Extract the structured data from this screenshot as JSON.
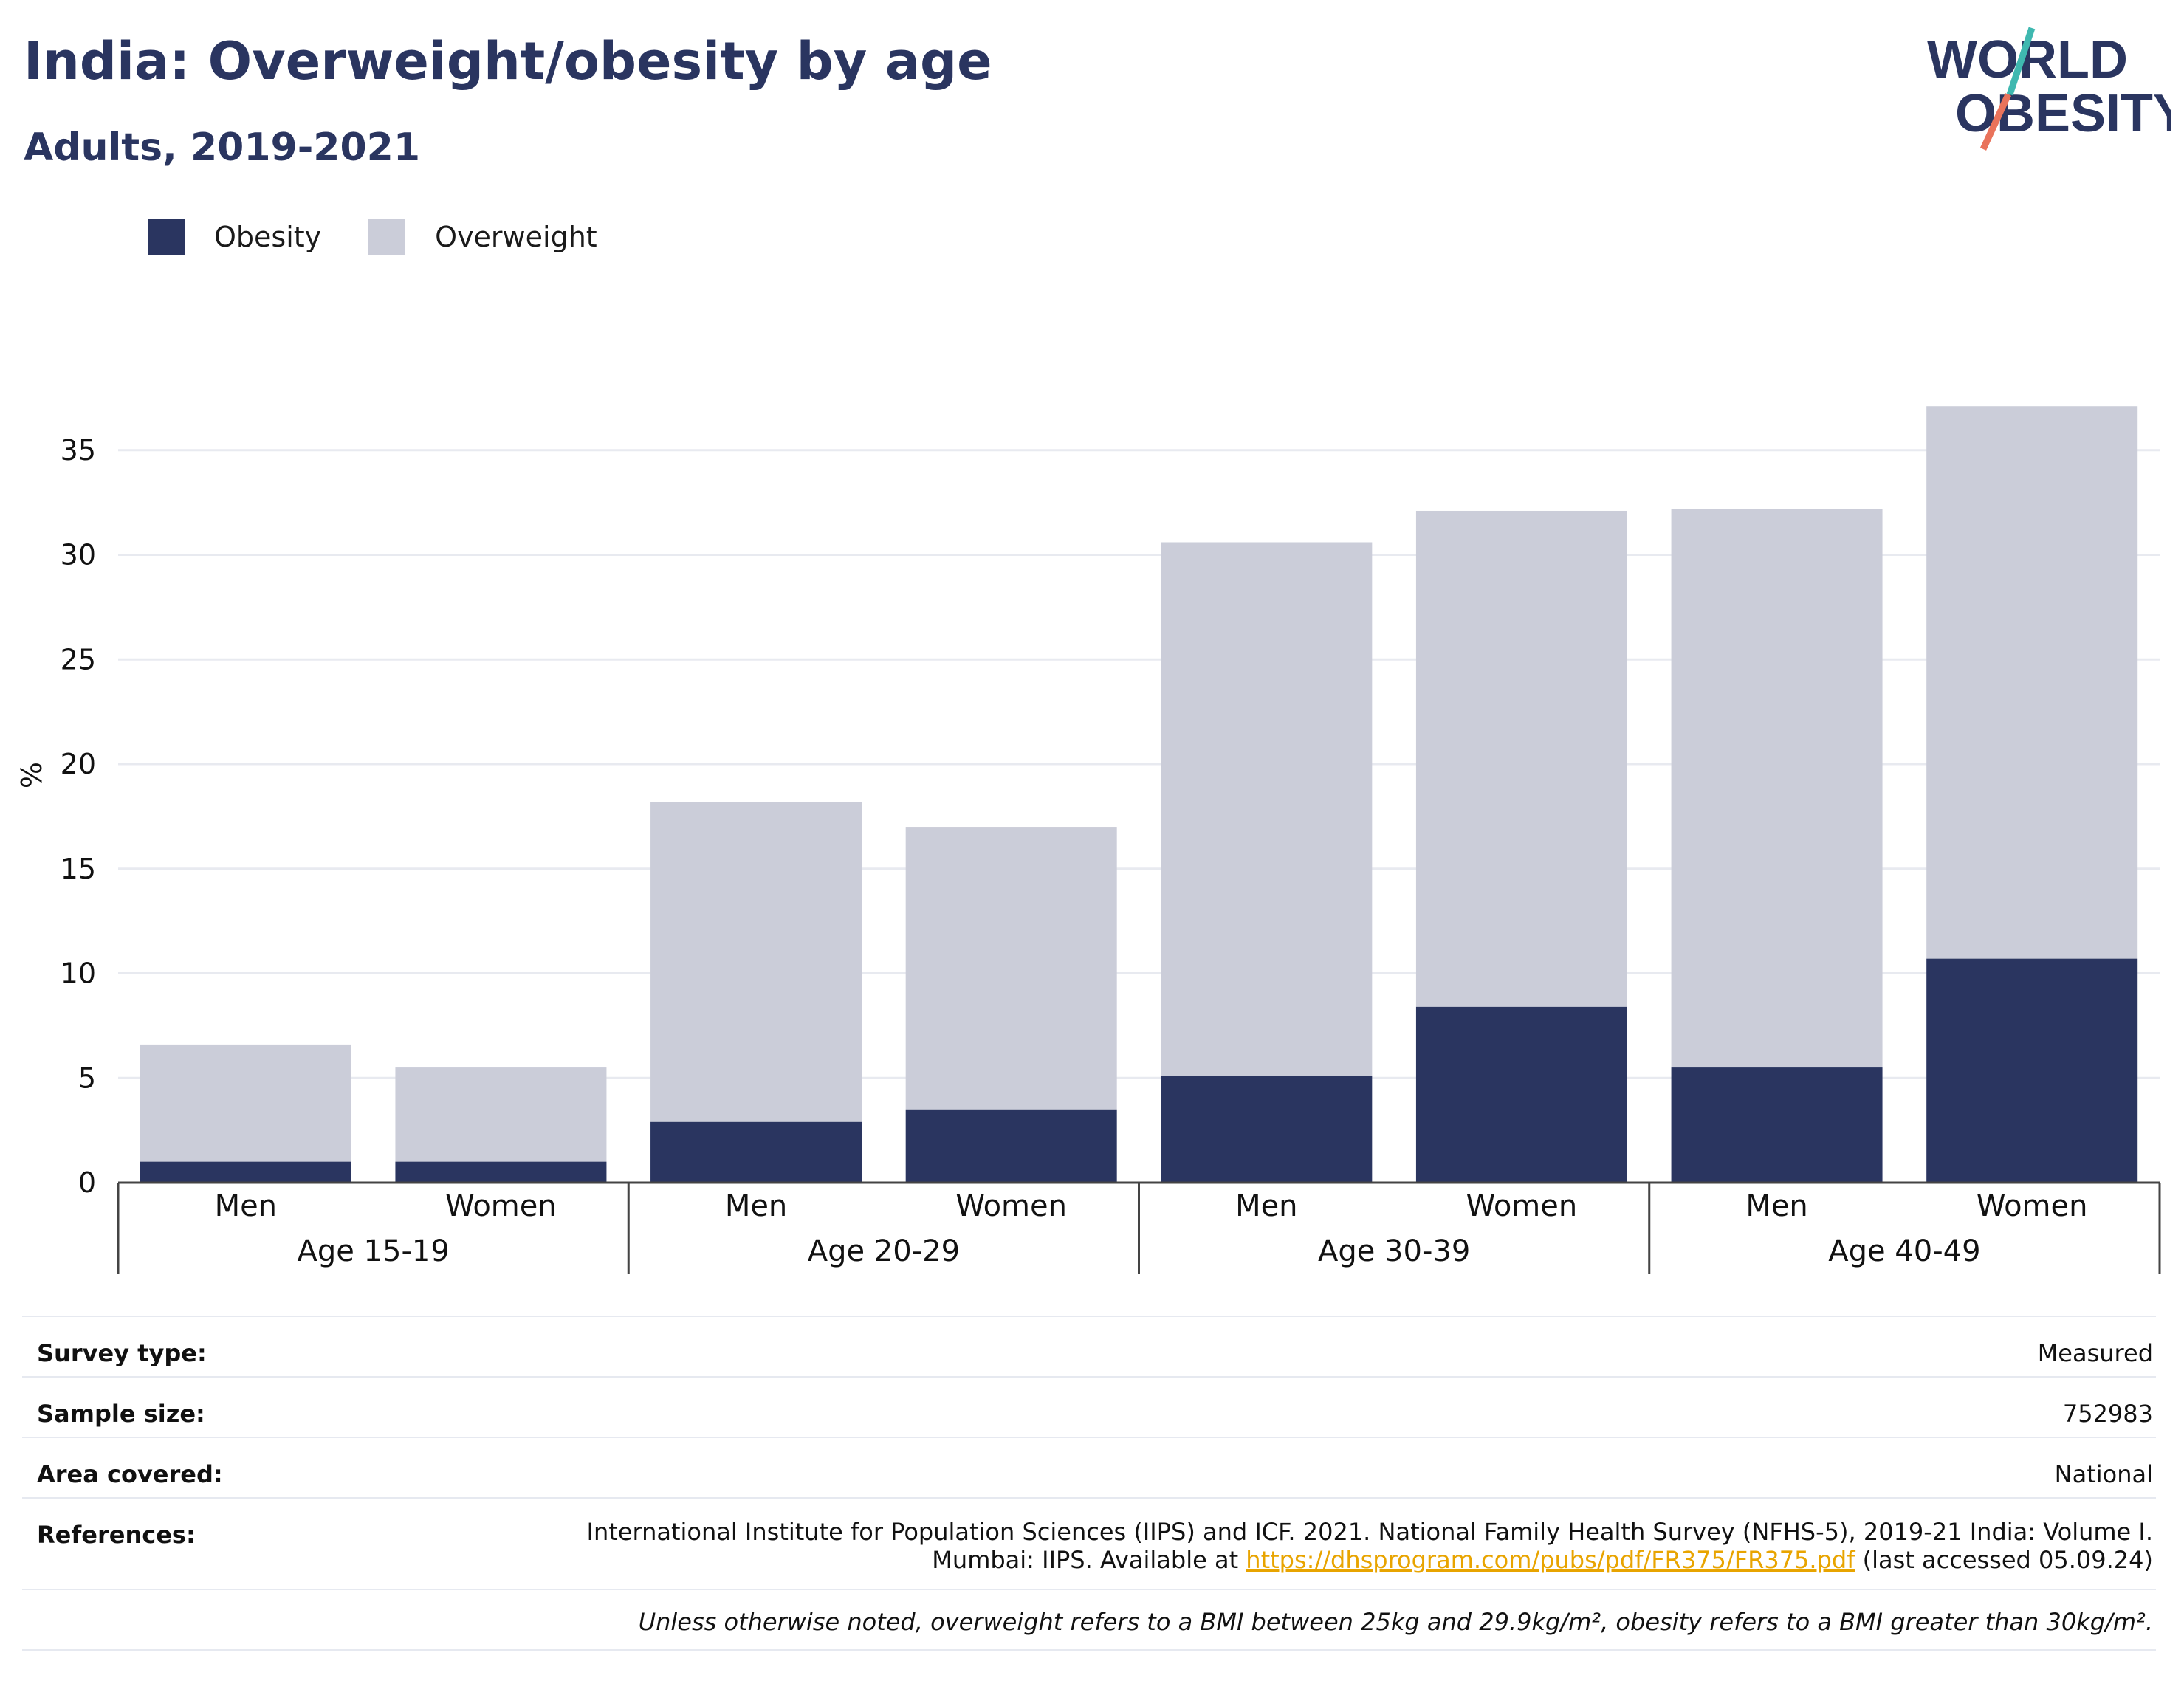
{
  "header": {
    "title": "India: Overweight/obesity by age",
    "subtitle": "Adults, 2019-2021"
  },
  "logo": {
    "line1": "WORLD",
    "line2": "OBESITY",
    "colors": {
      "text": "#2a3560",
      "accent_teal": "#3fb8b0",
      "accent_coral": "#e9735b"
    }
  },
  "colors": {
    "obesity": "#2a3560",
    "overweight": "#cbcdd9",
    "grid": "#e8eaf0",
    "axis": "#444444",
    "link": "#e8a400"
  },
  "chart_data": {
    "type": "bar",
    "stacked": true,
    "title": "India: Overweight/obesity by age",
    "subtitle": "Adults, 2019-2021",
    "ylabel": "%",
    "ylim": [
      0,
      37.5
    ],
    "yticks": [
      0,
      5,
      10,
      15,
      20,
      25,
      30,
      35
    ],
    "grid": true,
    "legend_position": "top-left",
    "groups": [
      "Age 15-19",
      "Age 20-29",
      "Age 30-39",
      "Age 40-49"
    ],
    "categories": [
      "Men",
      "Women",
      "Men",
      "Women",
      "Men",
      "Women",
      "Men",
      "Women"
    ],
    "series": [
      {
        "name": "Obesity",
        "values": [
          1.0,
          1.0,
          2.9,
          3.5,
          5.1,
          8.4,
          5.5,
          10.7
        ]
      },
      {
        "name": "Overweight",
        "values": [
          5.6,
          4.5,
          15.3,
          13.5,
          25.5,
          23.7,
          26.7,
          26.4
        ]
      }
    ]
  },
  "info": {
    "survey_type": {
      "label": "Survey type:",
      "value": "Measured"
    },
    "sample_size": {
      "label": "Sample size:",
      "value": "752983"
    },
    "area_covered": {
      "label": "Area covered:",
      "value": "National"
    },
    "references": {
      "label": "References:",
      "line1": "International Institute for Population Sciences (IIPS) and ICF. 2021. National Family Health Survey (NFHS-5), 2019-21 India: Volume I.",
      "prefix": "Mumbai: IIPS. Available at ",
      "link": "https://dhsprogram.com/pubs/pdf/FR375/FR375.pdf",
      "suffix": " (last accessed 05.09.24)"
    },
    "note": "Unless otherwise noted, overweight refers to a BMI between 25kg and 29.9kg/m², obesity refers to a BMI greater than 30kg/m²."
  }
}
